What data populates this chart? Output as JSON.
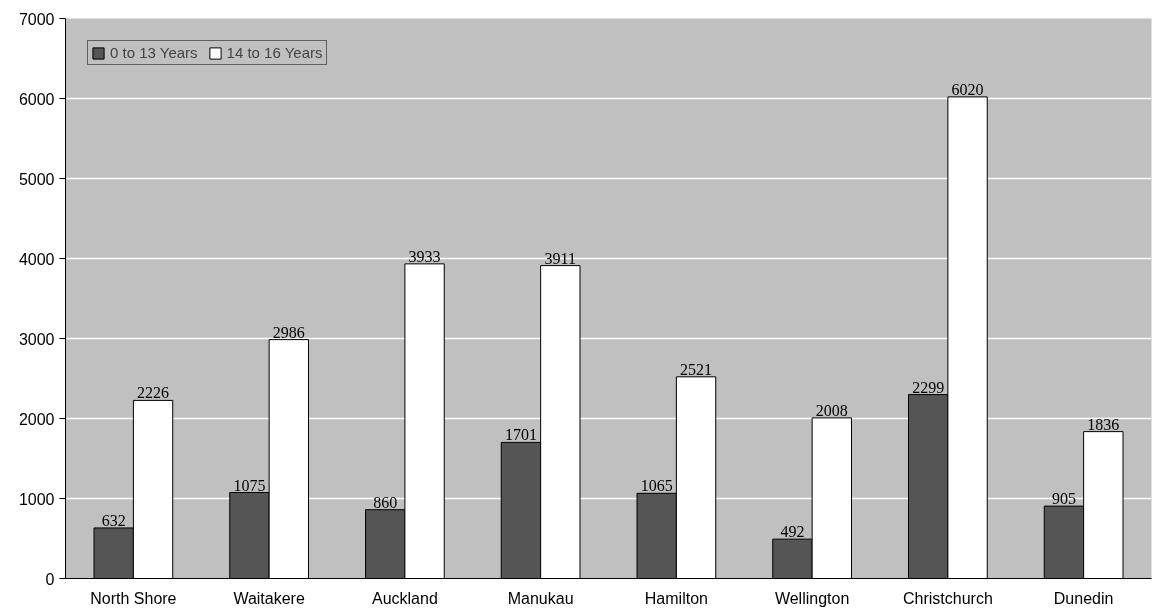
{
  "chart_data": {
    "type": "bar",
    "categories": [
      "North Shore",
      "Waitakere",
      "Auckland",
      "Manukau",
      "Hamilton",
      "Wellington",
      "Christchurch",
      "Dunedin"
    ],
    "series": [
      {
        "name": "0 to 13 Years",
        "color": "#555555",
        "values": [
          632,
          1075,
          860,
          1701,
          1065,
          492,
          2299,
          905
        ]
      },
      {
        "name": "14 to 16 Years",
        "color": "#ffffff",
        "values": [
          2226,
          2986,
          3933,
          3911,
          2521,
          2008,
          6020,
          1836
        ]
      }
    ],
    "ylim": [
      0,
      7000
    ],
    "yticks": [
      0,
      1000,
      2000,
      3000,
      4000,
      5000,
      6000,
      7000
    ],
    "grid": "y",
    "legend": "top left",
    "data_labels": true
  }
}
